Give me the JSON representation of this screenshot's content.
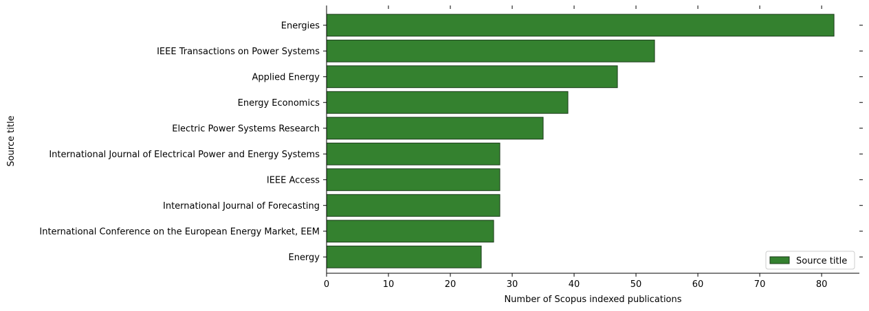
{
  "chart_data": {
    "type": "bar",
    "orientation": "horizontal",
    "categories": [
      "Energies",
      "IEEE Transactions on Power Systems",
      "Applied Energy",
      "Energy Economics",
      "Electric Power Systems Research",
      "International Journal of Electrical Power and Energy Systems",
      "IEEE Access",
      "International Journal of Forecasting",
      "International Conference on the European Energy Market, EEM",
      "Energy"
    ],
    "series": [
      {
        "name": "Source title",
        "values": [
          82,
          53,
          47,
          39,
          35,
          28,
          28,
          28,
          27,
          25
        ],
        "color": "#34812f",
        "edge_color": "#1b3a1a"
      }
    ],
    "xlabel": "Number of Scopus indexed publications",
    "ylabel": "Source title",
    "xlim": [
      0,
      86.1
    ],
    "xticks": [
      0,
      10,
      20,
      30,
      40,
      50,
      60,
      70,
      80
    ],
    "grid": false,
    "legend_position": "bottom-right"
  }
}
